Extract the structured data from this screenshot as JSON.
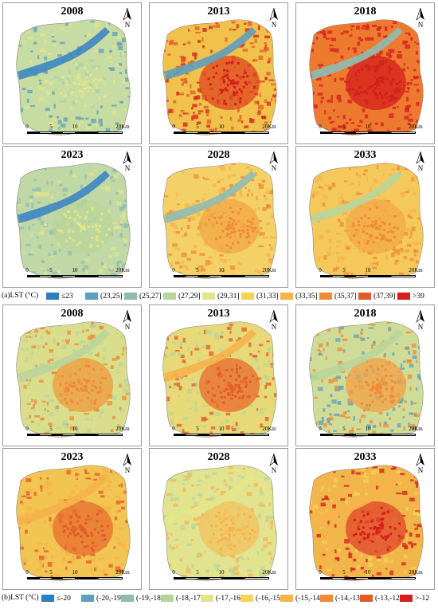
{
  "section_a": {
    "panel_label": "(a)",
    "legend_title": "LST (°C)",
    "classes": [
      {
        "label": "≤23",
        "color": "#2d7fbf"
      },
      {
        "label": "(23,25]",
        "color": "#5f9fbe"
      },
      {
        "label": "(25,27]",
        "color": "#8fbbb0"
      },
      {
        "label": "(27,29]",
        "color": "#b9d49a"
      },
      {
        "label": "(29,31]",
        "color": "#e3e58a"
      },
      {
        "label": "(31,33]",
        "color": "#f5d35a"
      },
      {
        "label": "(33,35]",
        "color": "#f5b34a"
      },
      {
        "label": "(35,37]",
        "color": "#ef8a37"
      },
      {
        "label": "(37,39]",
        "color": "#e45a28"
      },
      {
        "label": ">39",
        "color": "#d41f1c"
      }
    ],
    "panels": [
      {
        "year": "2008",
        "base": "#c6dca2",
        "accent": "#5f9fbe",
        "hot": "#e3e58a",
        "river": "#3d86c4",
        "core": "#c6dca2"
      },
      {
        "year": "2013",
        "base": "#f0c24c",
        "accent": "#e45a28",
        "hot": "#d41f1c",
        "river": "#5f9fbe",
        "core": "#e0451f"
      },
      {
        "year": "2018",
        "base": "#ee7a30",
        "accent": "#d41f1c",
        "hot": "#d41f1c",
        "river": "#8fbbb0",
        "core": "#d41f1c"
      },
      {
        "year": "2023",
        "base": "#bfd8a6",
        "accent": "#8fbbb0",
        "hot": "#e3e58a",
        "river": "#3d86c4",
        "core": "#b9d49a"
      },
      {
        "year": "2028",
        "base": "#f3d166",
        "accent": "#f5b34a",
        "hot": "#ef8a37",
        "river": "#8fbbb0",
        "core": "#f2a545"
      },
      {
        "year": "2033",
        "base": "#f4c85a",
        "accent": "#f5b34a",
        "hot": "#ef8a37",
        "river": "#b9d49a",
        "core": "#f3a847"
      }
    ]
  },
  "section_b": {
    "panel_label": "(b)",
    "legend_title": "LST (°C)",
    "classes": [
      {
        "label": "≤-20",
        "color": "#2d7fbf"
      },
      {
        "label": "(-20,-19]",
        "color": "#5f9fbe"
      },
      {
        "label": "(-19,-18]",
        "color": "#8fbbb0"
      },
      {
        "label": "(-18,-17]",
        "color": "#b9d49a"
      },
      {
        "label": "(-17,-16]",
        "color": "#e3e58a"
      },
      {
        "label": "(-16,-15]",
        "color": "#f5d35a"
      },
      {
        "label": "(-15,-14]",
        "color": "#f5b34a"
      },
      {
        "label": "(-14,-13]",
        "color": "#ef8a37"
      },
      {
        "label": "(-13,-12]",
        "color": "#e45a28"
      },
      {
        "label": ">-12",
        "color": "#d41f1c"
      }
    ],
    "panels": [
      {
        "year": "2008",
        "base": "#d9de8c",
        "accent": "#b9d49a",
        "hot": "#ef8a37",
        "river": "#b9d49a",
        "core": "#ef9a3c"
      },
      {
        "year": "2013",
        "base": "#e7d977",
        "accent": "#b9d49a",
        "hot": "#e45a28",
        "river": "#f5b34a",
        "core": "#e86a2c"
      },
      {
        "year": "2018",
        "base": "#cfdc98",
        "accent": "#5f9fbe",
        "hot": "#ef8a37",
        "river": "#b9d49a",
        "core": "#f1a044"
      },
      {
        "year": "2023",
        "base": "#f2c452",
        "accent": "#f5b34a",
        "hot": "#e45a28",
        "river": "#f5b34a",
        "core": "#e76d2e"
      },
      {
        "year": "2028",
        "base": "#e2e38e",
        "accent": "#b9d49a",
        "hot": "#f5b34a",
        "river": "#e3e58a",
        "core": "#f3c25e"
      },
      {
        "year": "2033",
        "base": "#f1b54a",
        "accent": "#f5d35a",
        "hot": "#d41f1c",
        "river": "#f5b34a",
        "core": "#e2452a"
      }
    ]
  },
  "scale_bar": {
    "labels": [
      "0",
      "5",
      "10",
      "20Km"
    ],
    "distances": [
      0,
      5,
      10,
      20
    ]
  },
  "north_label": "N"
}
